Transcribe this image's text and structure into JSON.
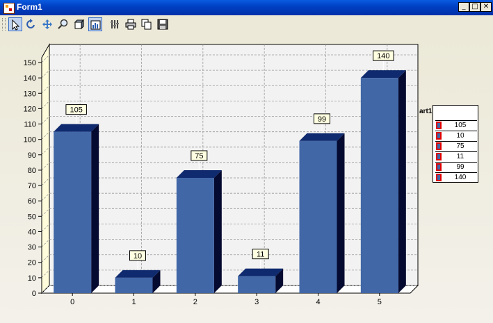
{
  "window": {
    "title": "Form1"
  },
  "window_buttons": [
    "minimize",
    "maximize",
    "close"
  ],
  "toolbar": {
    "buttons": [
      {
        "name": "pointer-icon",
        "active": true
      },
      {
        "name": "rotate-icon",
        "active": false
      },
      {
        "name": "move-icon",
        "active": false
      },
      {
        "name": "zoom-icon",
        "active": false
      },
      {
        "name": "3d-icon",
        "active": false
      },
      {
        "name": "chart-editor-icon",
        "active": true
      },
      {
        "name": "properties-icon",
        "active": false
      },
      {
        "name": "print-icon",
        "active": false
      },
      {
        "name": "copy-icon",
        "active": false
      },
      {
        "name": "save-icon",
        "active": false
      }
    ]
  },
  "colors": {
    "bar_front": "#4167a7",
    "bar_top": "#0f2a6e",
    "bar_side": "#050a30",
    "label_bg": "#ffffe1",
    "legend_swatch_border": "#e00000"
  },
  "chart_data": {
    "type": "bar",
    "categories": [
      "0",
      "1",
      "2",
      "3",
      "4",
      "5"
    ],
    "values": [
      105,
      10,
      75,
      11,
      99,
      140
    ],
    "ylim": [
      0,
      155
    ],
    "yticks": [
      0,
      10,
      20,
      30,
      40,
      50,
      60,
      70,
      80,
      90,
      100,
      110,
      120,
      130,
      140,
      150
    ],
    "grid": true,
    "three_d": true,
    "data_labels": [
      "105",
      "10",
      "75",
      "11",
      "99",
      "140"
    ],
    "legend": {
      "title": "art1",
      "placement": "right",
      "entries": [
        "105",
        "10",
        "75",
        "11",
        "99",
        "140"
      ]
    }
  }
}
